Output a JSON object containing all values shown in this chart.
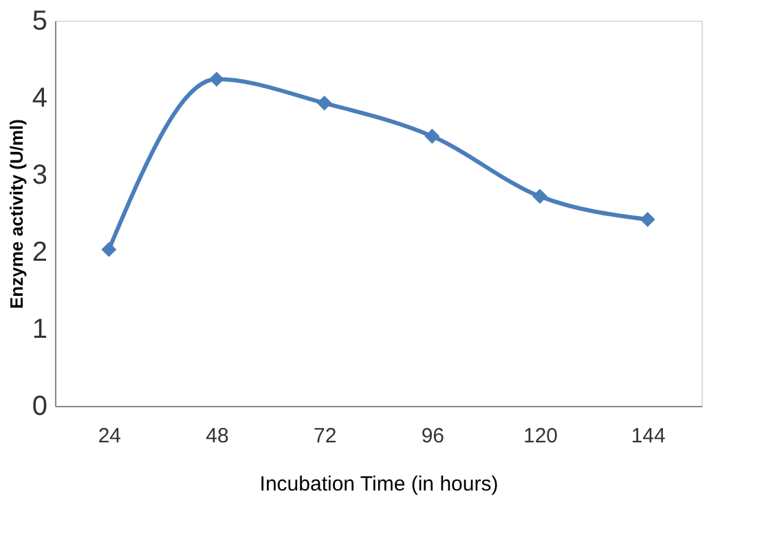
{
  "chart_data": {
    "type": "line",
    "xlabel": "Incubation Time (in hours)",
    "ylabel": "Enzyme activity (U/ml)",
    "categories": [
      "24",
      "48",
      "72",
      "96",
      "120",
      "144"
    ],
    "series": [
      {
        "color": "#4a7ebb",
        "values": [
          2.03,
          4.24,
          3.93,
          3.5,
          2.72,
          2.42
        ]
      }
    ],
    "ylim": [
      0,
      5
    ],
    "yticks": [
      0,
      1,
      2,
      3,
      4,
      5
    ],
    "grid": false,
    "marker": "diamond",
    "line_style": "solid"
  }
}
